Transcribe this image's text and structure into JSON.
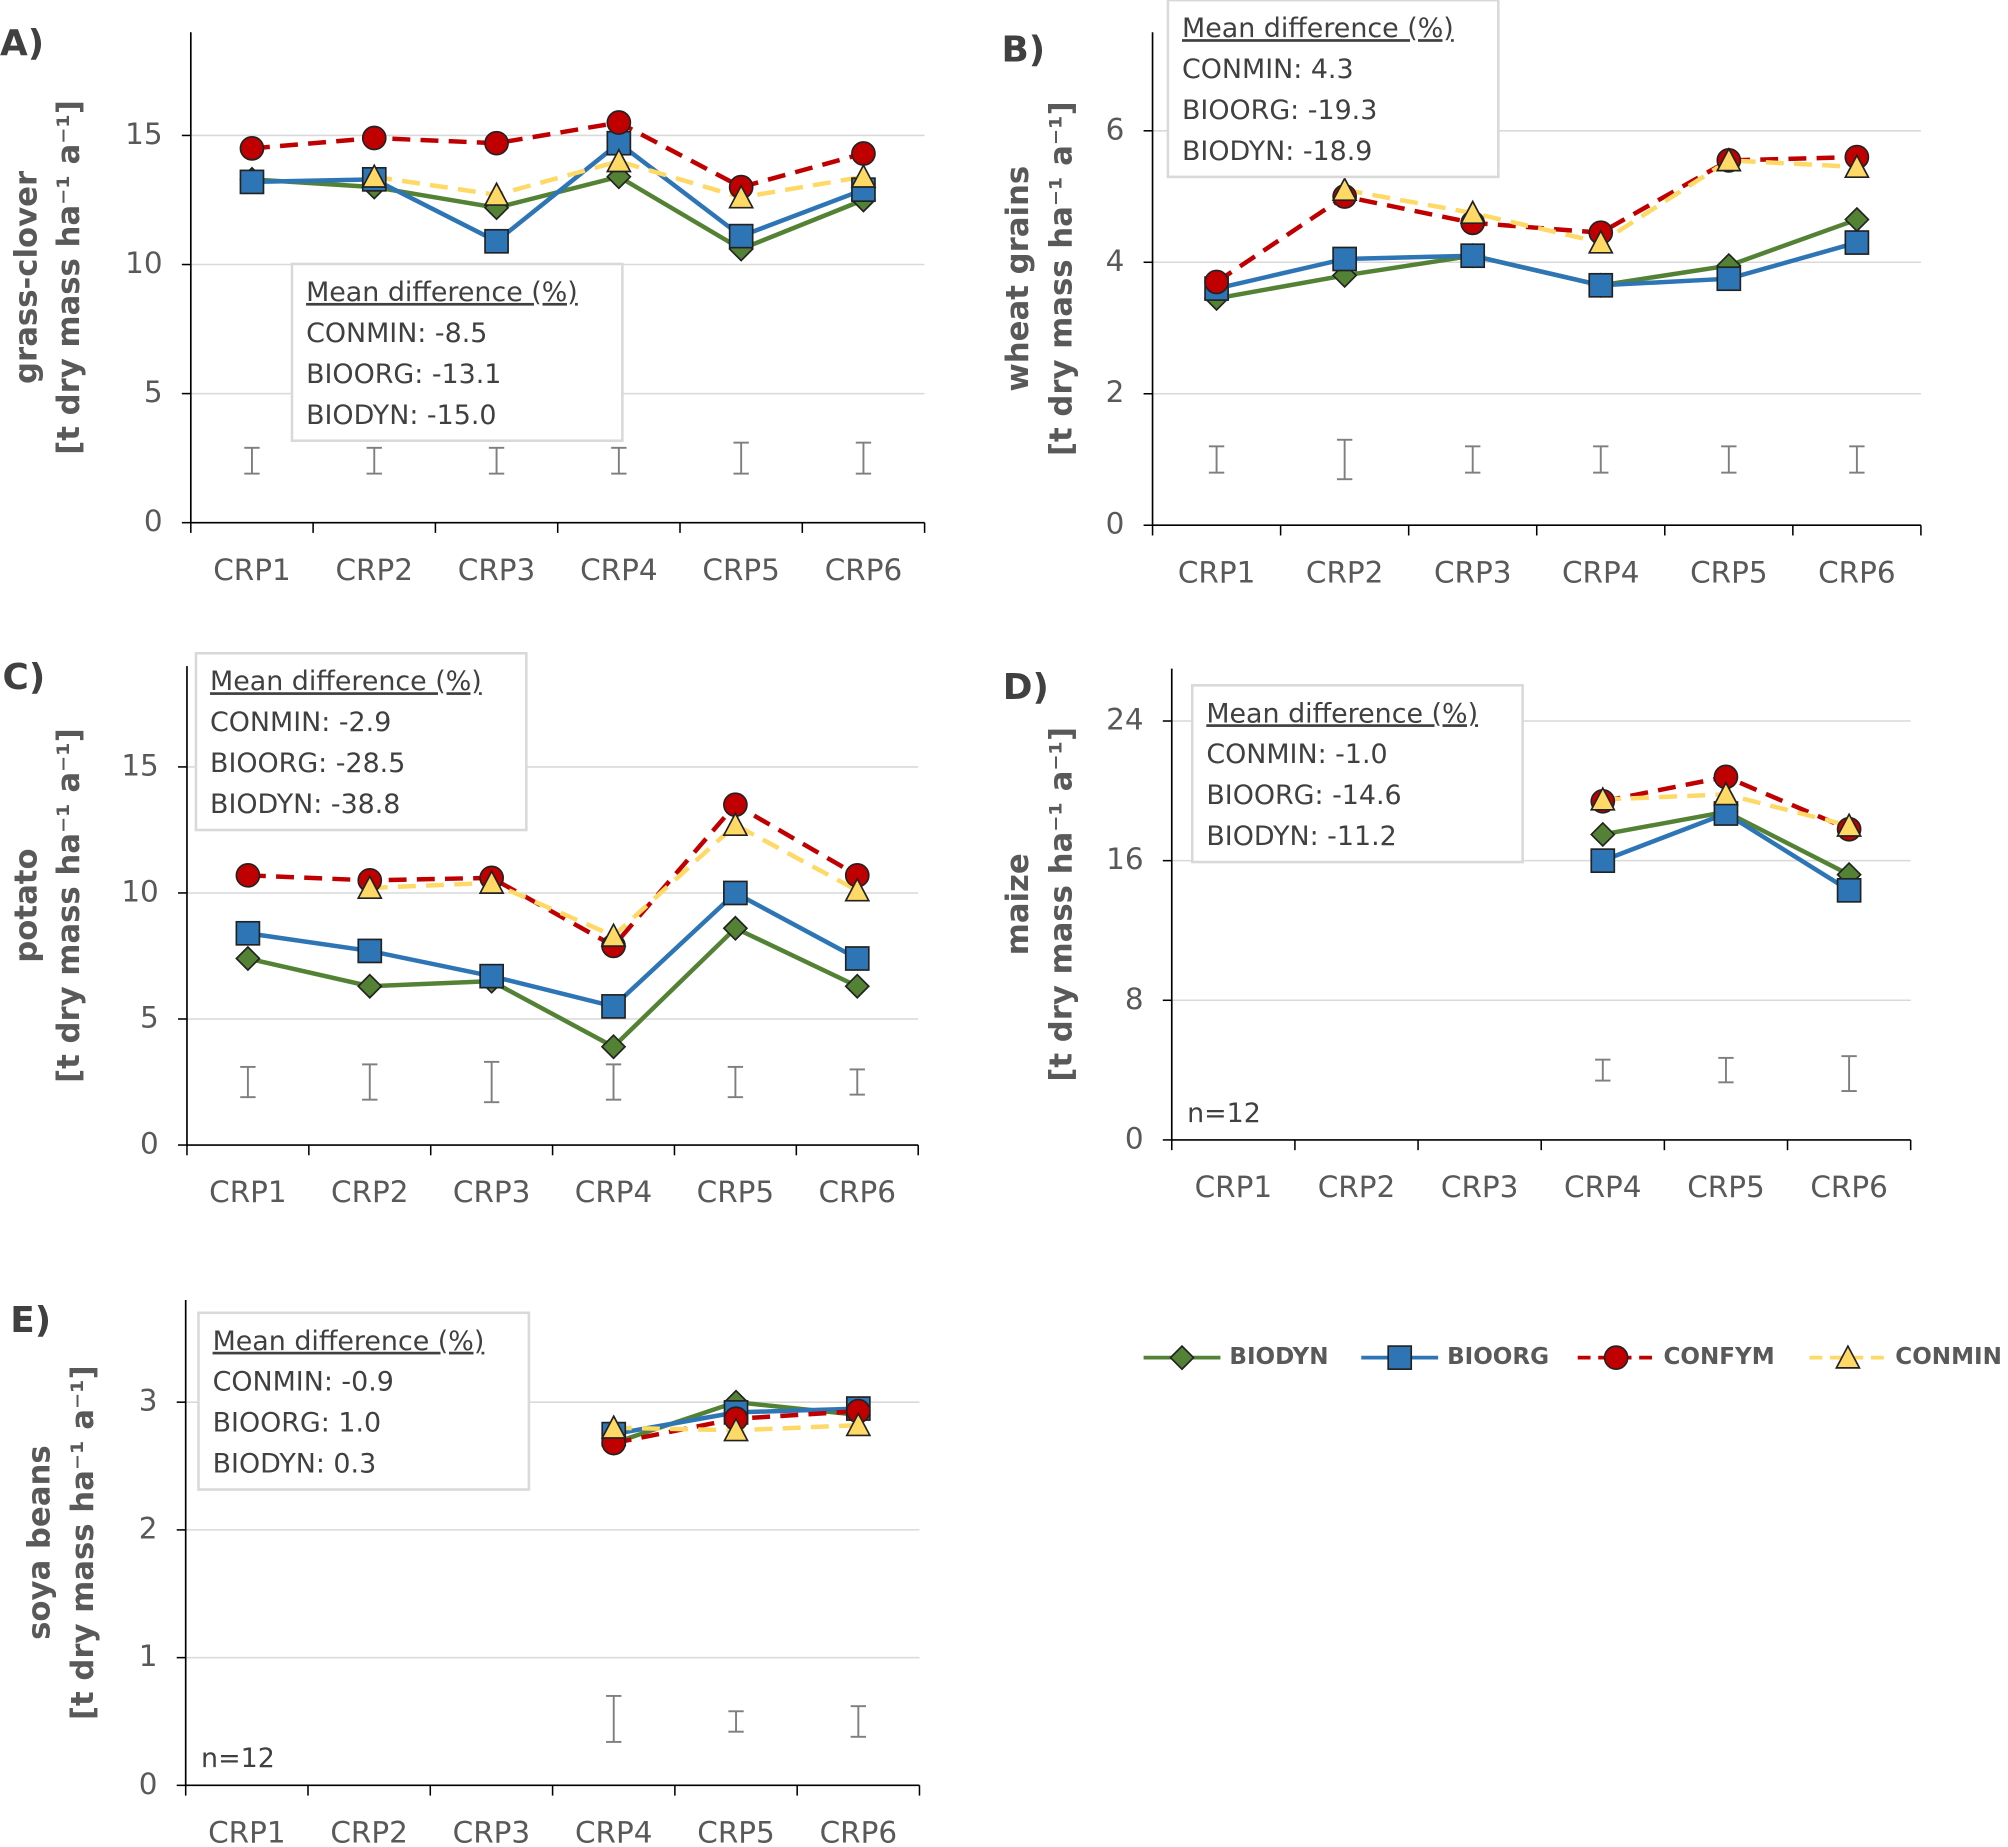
{
  "chart_data": [
    {
      "type": "line",
      "panel": "A)",
      "y_label": [
        "grass-clover",
        "[t dry mass ha⁻¹ a⁻¹]"
      ],
      "categories": [
        "CRP1",
        "CRP2",
        "CRP3",
        "CRP4",
        "CRP5",
        "CRP6"
      ],
      "ylim": [
        0,
        19
      ],
      "yticks": [
        0,
        5,
        10,
        15
      ],
      "grid": true,
      "series": [
        {
          "name": "BIODYN",
          "color": "#548235",
          "marker": "diamond",
          "dashed": false,
          "values": [
            13.3,
            13.0,
            12.2,
            13.4,
            10.6,
            12.5
          ]
        },
        {
          "name": "BIOORG",
          "color": "#2e75b6",
          "marker": "square",
          "dashed": false,
          "values": [
            13.2,
            13.3,
            10.9,
            14.7,
            11.1,
            12.9
          ]
        },
        {
          "name": "CONFYM",
          "color": "#c00000",
          "marker": "circle",
          "dashed": true,
          "values": [
            14.5,
            14.9,
            14.7,
            15.5,
            13.0,
            14.3
          ]
        },
        {
          "name": "CONMIN",
          "color": "#ffd966",
          "marker": "triangle",
          "dashed": true,
          "values": [
            null,
            13.4,
            12.7,
            14.0,
            12.6,
            13.4
          ]
        }
      ],
      "lsd": {
        "values": [
          2.4,
          2.4,
          2.4,
          2.4,
          2.5,
          2.5
        ],
        "errors": [
          0.5,
          0.5,
          0.5,
          0.5,
          0.6,
          0.6
        ]
      },
      "annotation": {
        "title": "Mean difference (%)",
        "lines": [
          "CONMIN: -8.5",
          "BIOORG: -13.1",
          "BIODYN: -15.0"
        ]
      }
    },
    {
      "type": "line",
      "panel": "B)",
      "y_label": [
        "wheat grains",
        "[t dry mass ha⁻¹ a⁻¹]"
      ],
      "categories": [
        "CRP1",
        "CRP2",
        "CRP3",
        "CRP4",
        "CRP5",
        "CRP6"
      ],
      "ylim": [
        0,
        7.5
      ],
      "yticks": [
        0,
        2,
        4,
        6
      ],
      "grid": true,
      "series": [
        {
          "name": "BIODYN",
          "color": "#548235",
          "marker": "diamond",
          "dashed": false,
          "values": [
            3.45,
            3.8,
            4.1,
            3.65,
            3.95,
            4.65
          ]
        },
        {
          "name": "BIOORG",
          "color": "#2e75b6",
          "marker": "square",
          "dashed": false,
          "values": [
            3.6,
            4.05,
            4.1,
            3.65,
            3.75,
            4.3
          ]
        },
        {
          "name": "CONFYM",
          "color": "#c00000",
          "marker": "circle",
          "dashed": true,
          "values": [
            3.7,
            5.0,
            4.6,
            4.45,
            5.55,
            5.6
          ]
        },
        {
          "name": "CONMIN",
          "color": "#ffd966",
          "marker": "triangle",
          "dashed": true,
          "values": [
            null,
            5.1,
            4.75,
            4.3,
            5.55,
            5.45
          ]
        }
      ],
      "lsd": {
        "values": [
          1.0,
          1.0,
          1.0,
          1.0,
          1.0,
          1.0
        ],
        "errors": [
          0.2,
          0.3,
          0.2,
          0.2,
          0.2,
          0.2
        ]
      },
      "annotation": {
        "title": "Mean difference (%)",
        "lines": [
          "CONMIN: 4.3",
          "BIOORG: -19.3",
          "BIODYN: -18.9"
        ]
      }
    },
    {
      "type": "line",
      "panel": "C)",
      "y_label": [
        "potato",
        "[t dry mass ha⁻¹ a⁻¹]"
      ],
      "categories": [
        "CRP1",
        "CRP2",
        "CRP3",
        "CRP4",
        "CRP5",
        "CRP6"
      ],
      "ylim": [
        0,
        19
      ],
      "yticks": [
        0,
        5,
        10,
        15
      ],
      "grid": true,
      "series": [
        {
          "name": "BIODYN",
          "color": "#548235",
          "marker": "diamond",
          "dashed": false,
          "values": [
            7.4,
            6.3,
            6.5,
            3.9,
            8.6,
            6.3
          ]
        },
        {
          "name": "BIOORG",
          "color": "#2e75b6",
          "marker": "square",
          "dashed": false,
          "values": [
            8.4,
            7.7,
            6.7,
            5.5,
            10.0,
            7.4
          ]
        },
        {
          "name": "CONFYM",
          "color": "#c00000",
          "marker": "circle",
          "dashed": true,
          "values": [
            10.7,
            10.5,
            10.6,
            7.9,
            13.5,
            10.7
          ]
        },
        {
          "name": "CONMIN",
          "color": "#ffd966",
          "marker": "triangle",
          "dashed": true,
          "values": [
            null,
            10.2,
            10.4,
            8.3,
            12.7,
            10.1
          ]
        }
      ],
      "lsd": {
        "values": [
          2.5,
          2.5,
          2.5,
          2.5,
          2.5,
          2.5
        ],
        "errors": [
          0.6,
          0.7,
          0.8,
          0.7,
          0.6,
          0.5
        ]
      },
      "annotation": {
        "title": "Mean difference (%)",
        "lines": [
          "CONMIN: -2.9",
          "BIOORG: -28.5",
          "BIODYN: -38.8"
        ]
      }
    },
    {
      "type": "line",
      "panel": "D)",
      "y_label": [
        "maize",
        "[t dry mass ha⁻¹ a⁻¹]"
      ],
      "categories": [
        "CRP1",
        "CRP2",
        "CRP3",
        "CRP4",
        "CRP5",
        "CRP6"
      ],
      "ylim": [
        0,
        27
      ],
      "yticks": [
        0,
        8,
        16,
        24
      ],
      "grid": true,
      "series": [
        {
          "name": "BIODYN",
          "color": "#548235",
          "marker": "diamond",
          "dashed": false,
          "values": [
            null,
            null,
            null,
            17.5,
            18.8,
            15.2
          ]
        },
        {
          "name": "BIOORG",
          "color": "#2e75b6",
          "marker": "square",
          "dashed": false,
          "values": [
            null,
            null,
            null,
            16.0,
            18.7,
            14.3
          ]
        },
        {
          "name": "CONFYM",
          "color": "#c00000",
          "marker": "circle",
          "dashed": true,
          "values": [
            null,
            null,
            null,
            19.4,
            20.8,
            17.8
          ]
        },
        {
          "name": "CONMIN",
          "color": "#ffd966",
          "marker": "triangle",
          "dashed": true,
          "values": [
            null,
            null,
            null,
            19.5,
            19.8,
            18.0
          ]
        }
      ],
      "lsd": {
        "values": [
          null,
          null,
          null,
          4.0,
          4.0,
          3.8
        ],
        "errors": [
          null,
          null,
          null,
          0.6,
          0.7,
          1.0
        ]
      },
      "annotation": {
        "title": "Mean difference (%)",
        "lines": [
          "CONMIN: -1.0",
          "BIOORG: -14.6",
          "BIODYN: -11.2"
        ]
      },
      "note": "n=12"
    },
    {
      "type": "line",
      "panel": "E)",
      "y_label": [
        "soya beans",
        "[t dry mass ha⁻¹ a⁻¹]"
      ],
      "categories": [
        "CRP1",
        "CRP2",
        "CRP3",
        "CRP4",
        "CRP5",
        "CRP6"
      ],
      "ylim": [
        0,
        3.8
      ],
      "yticks": [
        0,
        1,
        2,
        3
      ],
      "grid": true,
      "series": [
        {
          "name": "BIODYN",
          "color": "#548235",
          "marker": "diamond",
          "dashed": false,
          "values": [
            null,
            null,
            null,
            2.68,
            3.0,
            2.9
          ]
        },
        {
          "name": "BIOORG",
          "color": "#2e75b6",
          "marker": "square",
          "dashed": false,
          "values": [
            null,
            null,
            null,
            2.75,
            2.92,
            2.95
          ]
        },
        {
          "name": "CONFYM",
          "color": "#c00000",
          "marker": "circle",
          "dashed": true,
          "values": [
            null,
            null,
            null,
            2.68,
            2.87,
            2.93
          ]
        },
        {
          "name": "CONMIN",
          "color": "#ffd966",
          "marker": "triangle",
          "dashed": true,
          "values": [
            null,
            null,
            null,
            2.8,
            2.78,
            2.82
          ]
        }
      ],
      "lsd": {
        "values": [
          null,
          null,
          null,
          0.52,
          0.5,
          0.5
        ],
        "errors": [
          null,
          null,
          null,
          0.18,
          0.08,
          0.12
        ]
      },
      "annotation": {
        "title": "Mean difference (%)",
        "lines": [
          "CONMIN: -0.9",
          "BIOORG: 1.0",
          "BIODYN: 0.3"
        ]
      },
      "note": "n=12"
    }
  ]
}
